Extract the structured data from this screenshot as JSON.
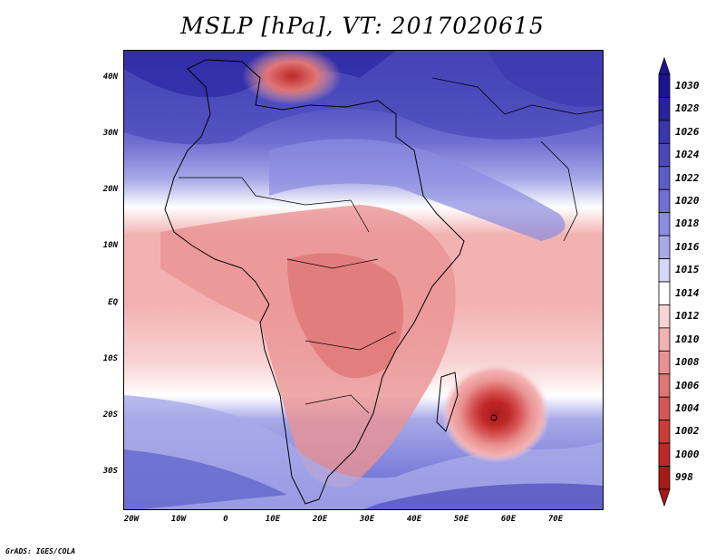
{
  "title": "MSLP [hPa], VT: 2017020615",
  "credit": "GrADS: IGES/COLA",
  "axes": {
    "lat_labels": [
      "40N",
      "30N",
      "20N",
      "10N",
      "EQ",
      "10S",
      "20S",
      "30S"
    ],
    "lon_labels": [
      "20W",
      "10W",
      "0",
      "10E",
      "20E",
      "30E",
      "40E",
      "50E",
      "60E",
      "70E"
    ]
  },
  "colorbar": {
    "labels": [
      "1030",
      "1028",
      "1026",
      "1024",
      "1022",
      "1020",
      "1018",
      "1016",
      "1015",
      "1014",
      "1012",
      "1010",
      "1008",
      "1006",
      "1004",
      "1002",
      "1000",
      "998"
    ],
    "colors": [
      "#1c1590",
      "#27229f",
      "#3a36ad",
      "#4a49bb",
      "#5b5ec8",
      "#706fd2",
      "#8a8ce0",
      "#a8aae8",
      "#d5d8f5",
      "#ffffff",
      "#f8d4d4",
      "#f3b2b2",
      "#ea9292",
      "#e07575",
      "#d75656",
      "#cc3b3b",
      "#c02828",
      "#a81a1a"
    ]
  },
  "map": {
    "region": "Africa",
    "field": "MSLP",
    "low_center_label": "cyclone near 58E 20S"
  }
}
